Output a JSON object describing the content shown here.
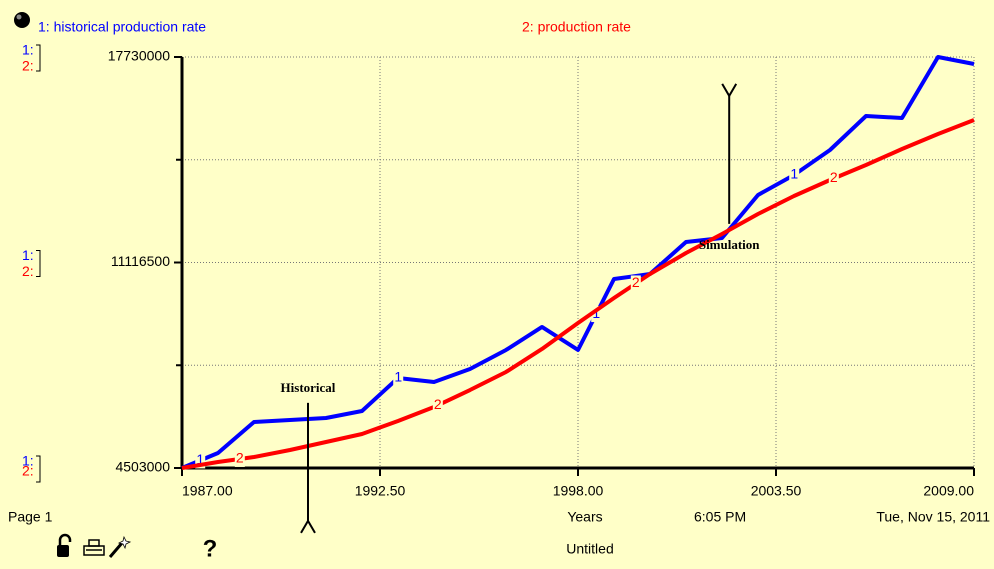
{
  "chart_data": {
    "type": "line",
    "x_label": "Years",
    "x": [
      1987,
      1988,
      1989,
      1990,
      1991,
      1992,
      1993,
      1994,
      1995,
      1996,
      1997,
      1998,
      1999,
      2000,
      2001,
      2002,
      2003,
      2004,
      2005,
      2006,
      2007,
      2008,
      2009
    ],
    "series": [
      {
        "name": "1: historical production rate",
        "key": "1:",
        "marker": "1",
        "color": "#0000ff",
        "values": [
          4503000,
          4986000,
          5983000,
          6048000,
          6112000,
          6337000,
          7399000,
          7271000,
          7689000,
          8301000,
          9041000,
          8301000,
          10585000,
          10746000,
          11776000,
          11905000,
          13289000,
          13932000,
          14737000,
          15831000,
          15767000,
          17730000,
          17505000
        ]
      },
      {
        "name": "2: production rate",
        "key": "2:",
        "marker": "2",
        "color": "#ff0000",
        "values": [
          4503000,
          4696000,
          4857000,
          5082000,
          5340000,
          5597000,
          6016000,
          6466000,
          7013000,
          7593000,
          8333000,
          9169000,
          9974000,
          10746000,
          11422000,
          12034000,
          12677000,
          13257000,
          13772000,
          14254000,
          14769000,
          15252000,
          15703000
        ]
      }
    ],
    "xlim": [
      1987,
      2009
    ],
    "xticks": [
      {
        "value": 1987,
        "label": "1987.00"
      },
      {
        "value": 1992.5,
        "label": "1992.50"
      },
      {
        "value": 1998,
        "label": "1998.00"
      },
      {
        "value": 2003.5,
        "label": "2003.50"
      },
      {
        "value": 2009,
        "label": "2009.00"
      }
    ],
    "ylim": [
      4503000,
      17730000
    ],
    "yticks": [
      4503000,
      11116500,
      17730000
    ],
    "yminor": [
      7809750,
      14423250
    ],
    "grid": true,
    "annotations": [
      {
        "text": "Historical",
        "x": 1990.5,
        "y": 7050000
      },
      {
        "text": "Simulation",
        "x": 2002.2,
        "y": 11650000
      }
    ]
  },
  "footer": {
    "page": "Page 1",
    "time": "6:05 PM",
    "date": "Tue, Nov 15, 2011",
    "file": "Untitled",
    "help": "?"
  }
}
